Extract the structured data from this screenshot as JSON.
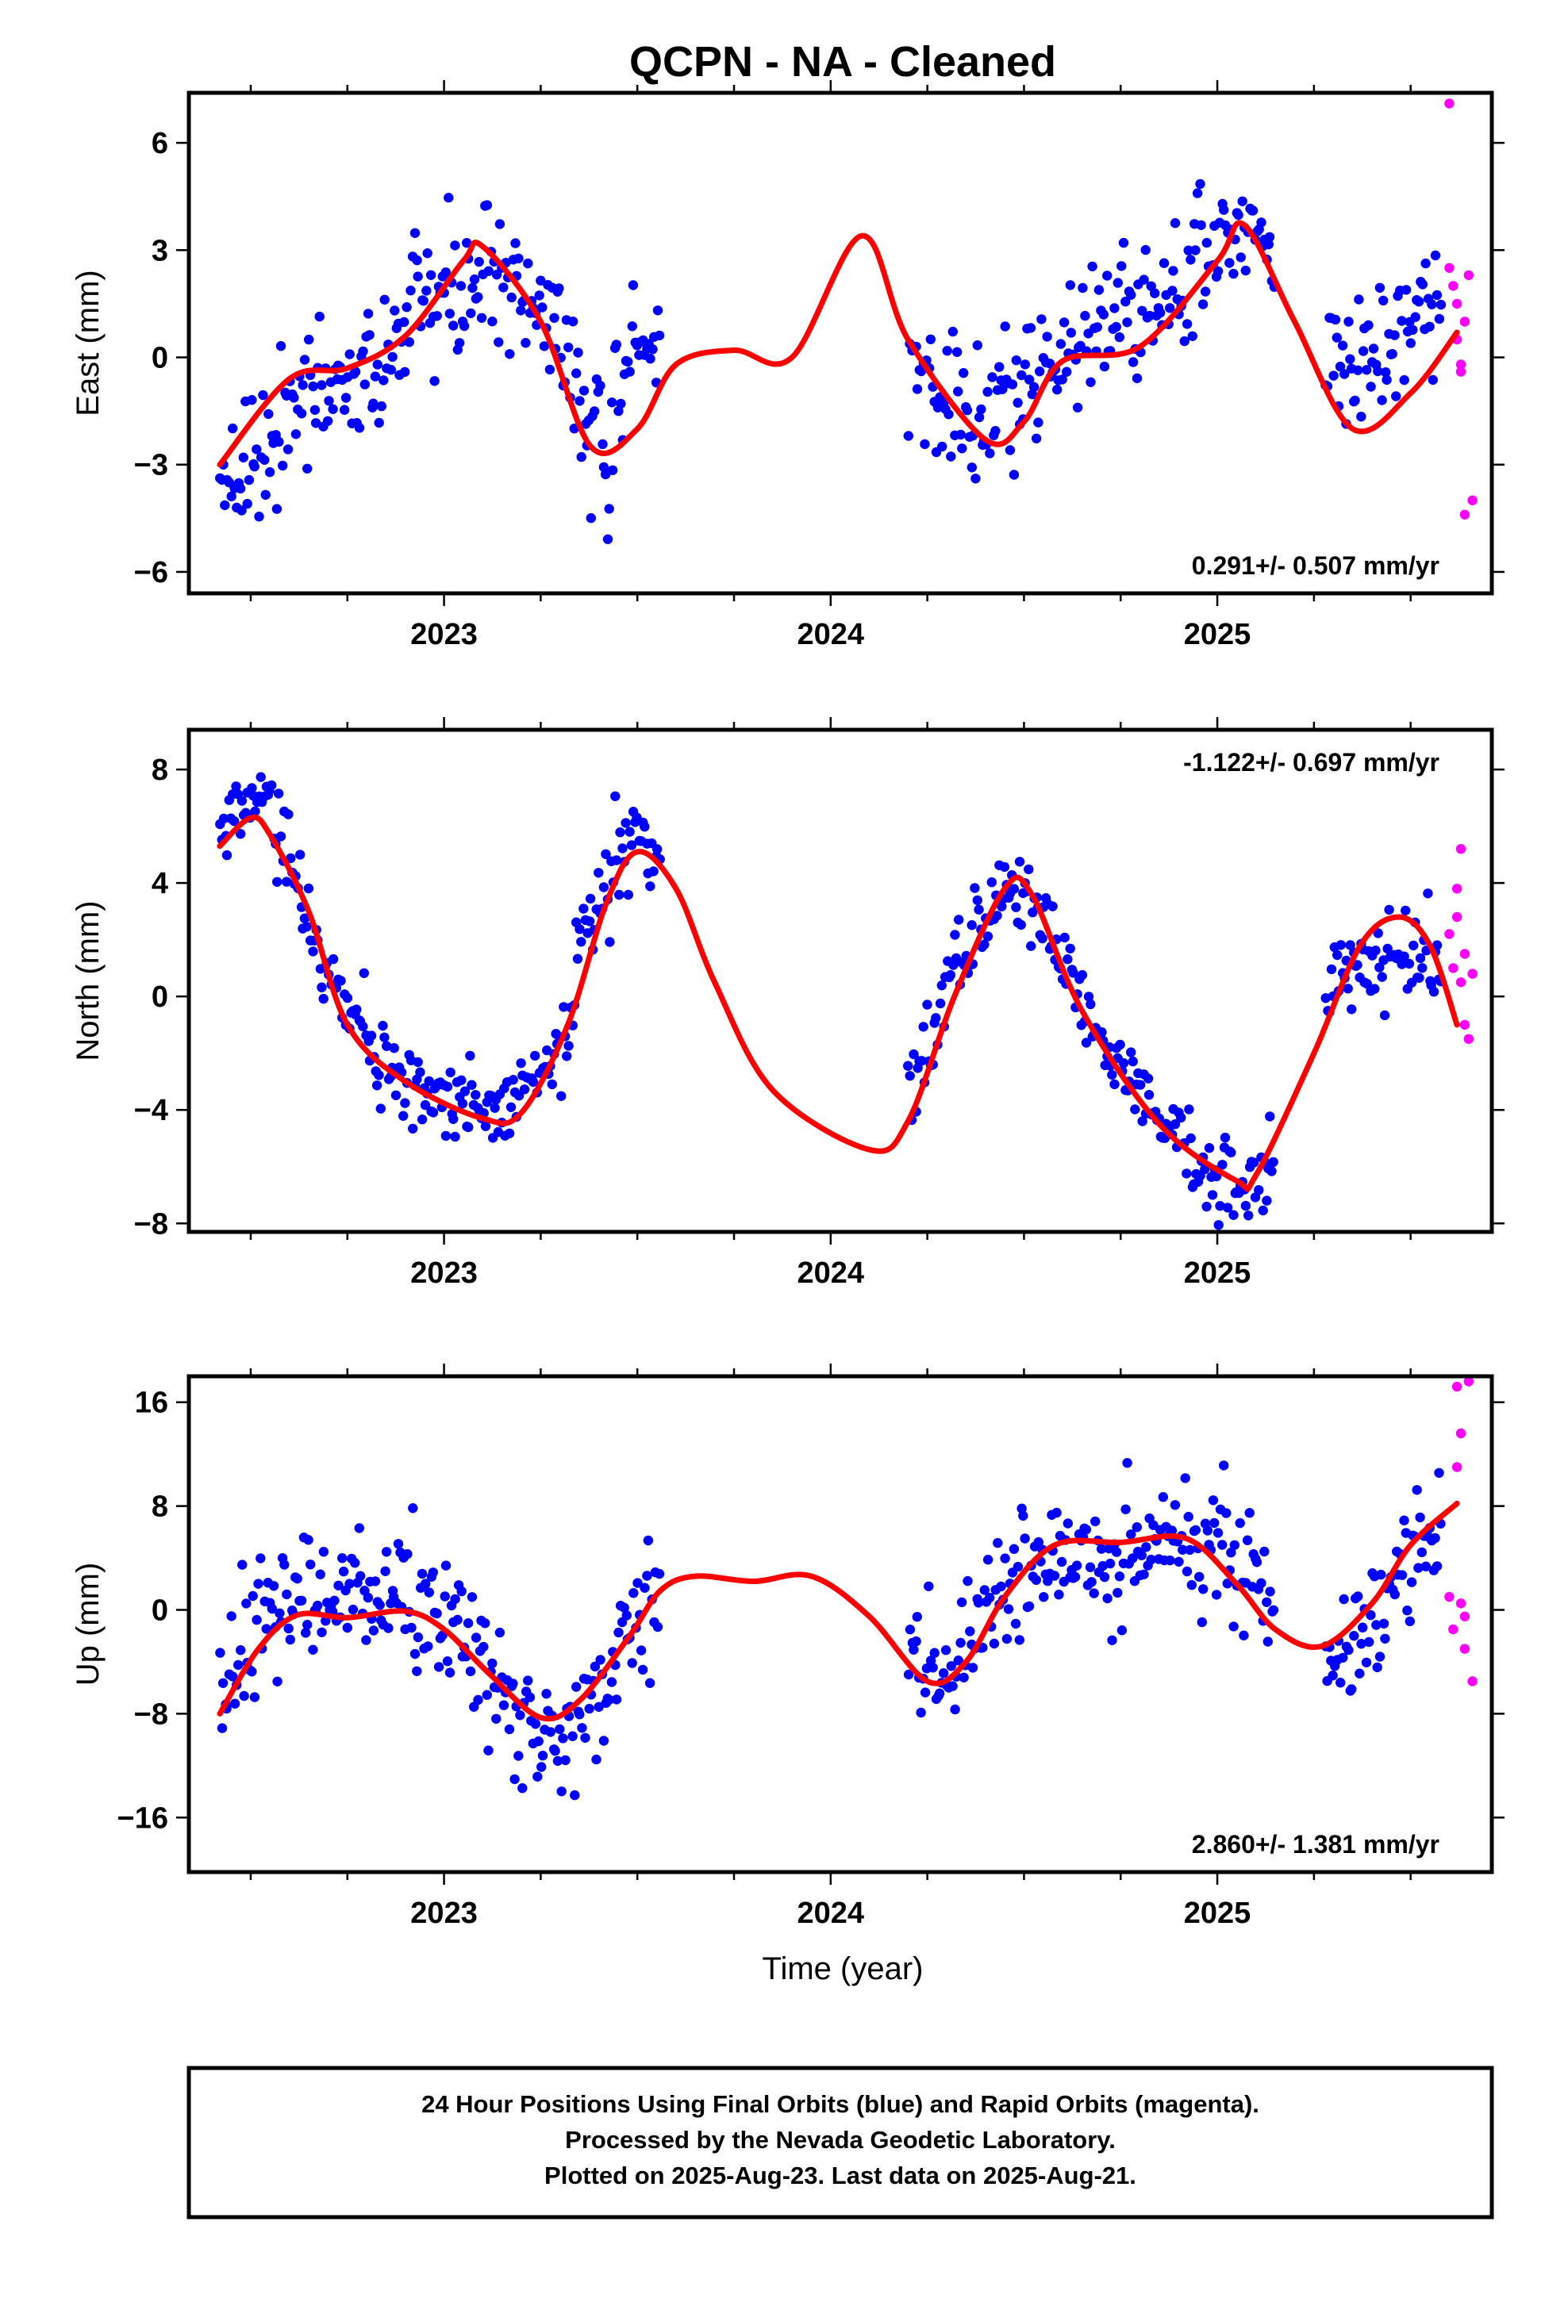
{
  "title": "QCPN  - NA - Cleaned",
  "colors": {
    "final": "#0000ff",
    "rapid": "#ff00ff",
    "fit": "#ff0000",
    "frame": "#000000"
  },
  "x_axis": {
    "label": "Time (year)",
    "ticks": [
      "2023",
      "2024",
      "2025"
    ]
  },
  "caption": {
    "line1": "24 Hour Positions Using Final Orbits (blue) and Rapid Orbits (magenta).",
    "line2": "Processed by the Nevada Geodetic Laboratory.",
    "line3": "Plotted on 2025-Aug-23. Last data on 2025-Aug-21."
  },
  "chart_data": [
    {
      "type": "scatter",
      "panel": "east",
      "ylabel": "East (mm)",
      "ylim": [
        -6.6,
        7.4
      ],
      "xlim": [
        2022.34,
        2025.71
      ],
      "yticks": [
        -6,
        -3,
        0,
        3,
        6
      ],
      "ytick_labels": [
        "−6",
        "−3",
        "0",
        "3",
        "6"
      ],
      "rate_label": "0.291+/- 0.507 mm/yr",
      "rate_position": "bottom-right",
      "gaps": [
        [
          2023.56,
          2024.2
        ],
        [
          2025.15,
          2025.28
        ]
      ],
      "final_trend": [
        [
          2022.42,
          -3.2
        ],
        [
          2022.6,
          -1.5
        ],
        [
          2022.8,
          -0.5
        ],
        [
          2023.0,
          1.8
        ],
        [
          2023.15,
          2.5
        ],
        [
          2023.3,
          0.5
        ],
        [
          2023.42,
          -3.2
        ],
        [
          2023.52,
          0.5
        ],
        [
          2024.2,
          -0.2
        ],
        [
          2024.35,
          -2.0
        ],
        [
          2024.5,
          -0.8
        ],
        [
          2024.7,
          1.0
        ],
        [
          2024.85,
          1.5
        ],
        [
          2025.0,
          3.0
        ],
        [
          2025.1,
          3.8
        ],
        [
          2025.3,
          -0.2
        ],
        [
          2025.45,
          0.5
        ],
        [
          2025.58,
          1.5
        ]
      ],
      "final_scatter_mm": 1.3,
      "rapid_points": [
        [
          2025.6,
          7.1
        ],
        [
          2025.6,
          2.5
        ],
        [
          2025.61,
          2.0
        ],
        [
          2025.62,
          1.5
        ],
        [
          2025.62,
          0.5
        ],
        [
          2025.63,
          -0.2
        ],
        [
          2025.63,
          -0.4
        ],
        [
          2025.64,
          1.0
        ],
        [
          2025.65,
          2.3
        ],
        [
          2025.64,
          -4.4
        ],
        [
          2025.66,
          -4.0
        ]
      ],
      "fit": [
        [
          2022.42,
          -3.0
        ],
        [
          2022.6,
          -0.6
        ],
        [
          2022.75,
          -0.3
        ],
        [
          2022.9,
          0.6
        ],
        [
          2023.05,
          2.7
        ],
        [
          2023.1,
          3.1
        ],
        [
          2023.25,
          1.0
        ],
        [
          2023.38,
          -2.5
        ],
        [
          2023.5,
          -2.0
        ],
        [
          2023.6,
          -0.2
        ],
        [
          2023.75,
          0.2
        ],
        [
          2023.9,
          0.0
        ],
        [
          2024.08,
          3.4
        ],
        [
          2024.2,
          0.5
        ],
        [
          2024.4,
          -2.3
        ],
        [
          2024.5,
          -1.8
        ],
        [
          2024.6,
          -0.1
        ],
        [
          2024.8,
          0.3
        ],
        [
          2025.0,
          2.7
        ],
        [
          2025.07,
          3.7
        ],
        [
          2025.2,
          1.0
        ],
        [
          2025.35,
          -2.0
        ],
        [
          2025.5,
          -1.0
        ],
        [
          2025.62,
          0.7
        ]
      ]
    },
    {
      "type": "scatter",
      "panel": "north",
      "ylabel": "North (mm)",
      "ylim": [
        -8.3,
        9.4
      ],
      "xlim": [
        2022.34,
        2025.71
      ],
      "yticks": [
        -8,
        -4,
        0,
        4,
        8
      ],
      "ytick_labels": [
        "−8",
        "−4",
        "0",
        "4",
        "8"
      ],
      "rate_label": "-1.122+/- 0.697 mm/yr",
      "rate_position": "top-right",
      "gaps": [
        [
          2023.56,
          2024.2
        ],
        [
          2025.15,
          2025.28
        ]
      ],
      "final_trend": [
        [
          2022.42,
          6.2
        ],
        [
          2022.5,
          7.0
        ],
        [
          2022.55,
          6.5
        ],
        [
          2022.7,
          0.5
        ],
        [
          2022.85,
          -2.5
        ],
        [
          2023.0,
          -3.5
        ],
        [
          2023.15,
          -4.0
        ],
        [
          2023.3,
          -2.0
        ],
        [
          2023.4,
          4.0
        ],
        [
          2023.5,
          5.5
        ],
        [
          2023.55,
          4.5
        ],
        [
          2024.2,
          -3.5
        ],
        [
          2024.3,
          0.5
        ],
        [
          2024.45,
          4.0
        ],
        [
          2024.55,
          3.0
        ],
        [
          2024.7,
          -1.5
        ],
        [
          2024.85,
          -4.5
        ],
        [
          2025.0,
          -6.5
        ],
        [
          2025.1,
          -7.0
        ],
        [
          2025.3,
          0.5
        ],
        [
          2025.45,
          1.5
        ],
        [
          2025.58,
          1.0
        ]
      ],
      "final_scatter_mm": 1.0,
      "rapid_points": [
        [
          2025.6,
          2.2
        ],
        [
          2025.61,
          1.0
        ],
        [
          2025.62,
          2.8
        ],
        [
          2025.62,
          3.8
        ],
        [
          2025.63,
          5.2
        ],
        [
          2025.63,
          0.5
        ],
        [
          2025.64,
          -1.0
        ],
        [
          2025.65,
          -1.5
        ],
        [
          2025.64,
          1.5
        ],
        [
          2025.66,
          0.8
        ]
      ],
      "fit": [
        [
          2022.42,
          5.3
        ],
        [
          2022.5,
          6.3
        ],
        [
          2022.55,
          5.7
        ],
        [
          2022.65,
          3.0
        ],
        [
          2022.75,
          -1.0
        ],
        [
          2022.9,
          -3.0
        ],
        [
          2023.1,
          -4.3
        ],
        [
          2023.2,
          -4.1
        ],
        [
          2023.32,
          -1.0
        ],
        [
          2023.42,
          3.3
        ],
        [
          2023.5,
          5.1
        ],
        [
          2023.6,
          3.8
        ],
        [
          2023.7,
          0.5
        ],
        [
          2023.85,
          -3.3
        ],
        [
          2024.1,
          -5.4
        ],
        [
          2024.2,
          -4.4
        ],
        [
          2024.32,
          0.0
        ],
        [
          2024.45,
          3.8
        ],
        [
          2024.52,
          3.6
        ],
        [
          2024.65,
          -0.5
        ],
        [
          2024.85,
          -4.5
        ],
        [
          2025.05,
          -6.5
        ],
        [
          2025.1,
          -6.3
        ],
        [
          2025.25,
          -2.0
        ],
        [
          2025.37,
          1.8
        ],
        [
          2025.47,
          2.8
        ],
        [
          2025.55,
          1.8
        ],
        [
          2025.62,
          -1.0
        ]
      ]
    },
    {
      "type": "scatter",
      "panel": "up",
      "ylabel": "Up (mm)",
      "ylim": [
        -20.2,
        18.0
      ],
      "xlim": [
        2022.34,
        2025.71
      ],
      "yticks": [
        -16,
        -8,
        0,
        8,
        16
      ],
      "ytick_labels": [
        "−16",
        "−8",
        "0",
        "8",
        "16"
      ],
      "rate_label": "2.860+/- 1.381 mm/yr",
      "rate_position": "bottom-right",
      "gaps": [
        [
          2023.56,
          2024.2
        ],
        [
          2025.15,
          2025.28
        ]
      ],
      "final_trend": [
        [
          2022.42,
          -6.0
        ],
        [
          2022.55,
          0.0
        ],
        [
          2022.7,
          1.5
        ],
        [
          2022.9,
          0.5
        ],
        [
          2023.05,
          -1.5
        ],
        [
          2023.2,
          -8.0
        ],
        [
          2023.3,
          -11.0
        ],
        [
          2023.4,
          -7.0
        ],
        [
          2023.5,
          -1.0
        ],
        [
          2023.55,
          2.0
        ],
        [
          2024.2,
          -3.0
        ],
        [
          2024.3,
          -6.5
        ],
        [
          2024.4,
          -1.0
        ],
        [
          2024.55,
          4.5
        ],
        [
          2024.7,
          4.0
        ],
        [
          2024.85,
          5.0
        ],
        [
          2025.0,
          4.0
        ],
        [
          2025.1,
          2.0
        ],
        [
          2025.3,
          -5.0
        ],
        [
          2025.45,
          2.0
        ],
        [
          2025.58,
          5.0
        ]
      ],
      "final_scatter_mm": 3.5,
      "rapid_points": [
        [
          2025.6,
          1.0
        ],
        [
          2025.61,
          -1.5
        ],
        [
          2025.62,
          11.0
        ],
        [
          2025.62,
          17.2
        ],
        [
          2025.63,
          13.6
        ],
        [
          2025.63,
          0.5
        ],
        [
          2025.64,
          -0.5
        ],
        [
          2025.65,
          17.6
        ],
        [
          2025.64,
          -3.0
        ],
        [
          2025.66,
          -5.5
        ]
      ],
      "fit": [
        [
          2022.42,
          -8.0
        ],
        [
          2022.52,
          -3.0
        ],
        [
          2022.62,
          -0.4
        ],
        [
          2022.75,
          -0.6
        ],
        [
          2022.9,
          -0.1
        ],
        [
          2023.0,
          -1.5
        ],
        [
          2023.12,
          -5.0
        ],
        [
          2023.25,
          -8.3
        ],
        [
          2023.35,
          -7.0
        ],
        [
          2023.48,
          -2.0
        ],
        [
          2023.56,
          1.5
        ],
        [
          2023.65,
          2.6
        ],
        [
          2023.8,
          2.2
        ],
        [
          2023.95,
          2.6
        ],
        [
          2024.1,
          -0.5
        ],
        [
          2024.25,
          -5.5
        ],
        [
          2024.35,
          -4.0
        ],
        [
          2024.45,
          1.0
        ],
        [
          2024.58,
          5.0
        ],
        [
          2024.75,
          5.2
        ],
        [
          2024.92,
          5.5
        ],
        [
          2025.05,
          2.0
        ],
        [
          2025.15,
          -1.5
        ],
        [
          2025.27,
          -2.8
        ],
        [
          2025.4,
          0.5
        ],
        [
          2025.5,
          5.0
        ],
        [
          2025.62,
          8.2
        ]
      ]
    }
  ]
}
